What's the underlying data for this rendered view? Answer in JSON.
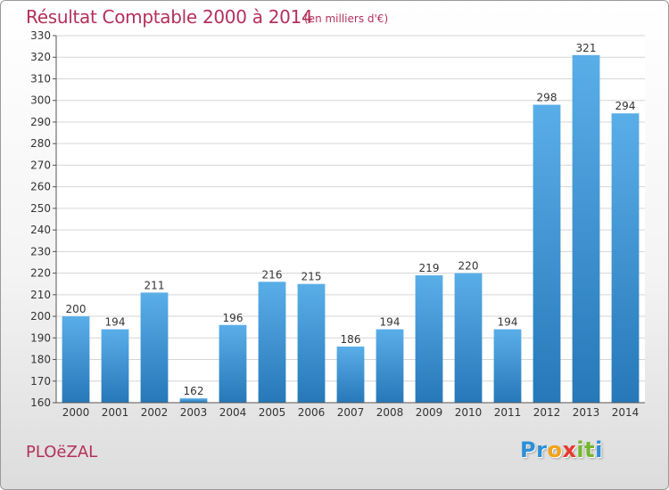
{
  "title": "Résultat Comptable 2000 à 2014",
  "subtitle": "(en milliers d'€)",
  "commune": "PLOëZAL",
  "logo": {
    "letters": [
      "P",
      "r",
      "o",
      "x",
      "i",
      "t",
      "i"
    ],
    "colors": [
      "#2d8fd6",
      "#2d8fd6",
      "#f3a316",
      "#e8382c",
      "#74b72e",
      "#74b72e",
      "#2d8fd6"
    ]
  },
  "colors": {
    "bar_top": "#5aaee8",
    "bar_bottom": "#2678b8",
    "title": "#b4305a",
    "grid": "#d6d6d6"
  },
  "chart_data": {
    "type": "bar",
    "title": "Résultat Comptable 2000 à 2014",
    "subtitle": "(en milliers d'€)",
    "categories": [
      "2000",
      "2001",
      "2002",
      "2003",
      "2004",
      "2005",
      "2006",
      "2007",
      "2008",
      "2009",
      "2010",
      "2011",
      "2012",
      "2013",
      "2014"
    ],
    "values": [
      200,
      194,
      211,
      162,
      196,
      216,
      215,
      186,
      194,
      219,
      220,
      194,
      298,
      321,
      294
    ],
    "ylim": [
      160,
      330
    ],
    "yticks": [
      160,
      170,
      180,
      190,
      200,
      210,
      220,
      230,
      240,
      250,
      260,
      270,
      280,
      290,
      300,
      310,
      320,
      330
    ],
    "grid": true,
    "legend": "none"
  }
}
